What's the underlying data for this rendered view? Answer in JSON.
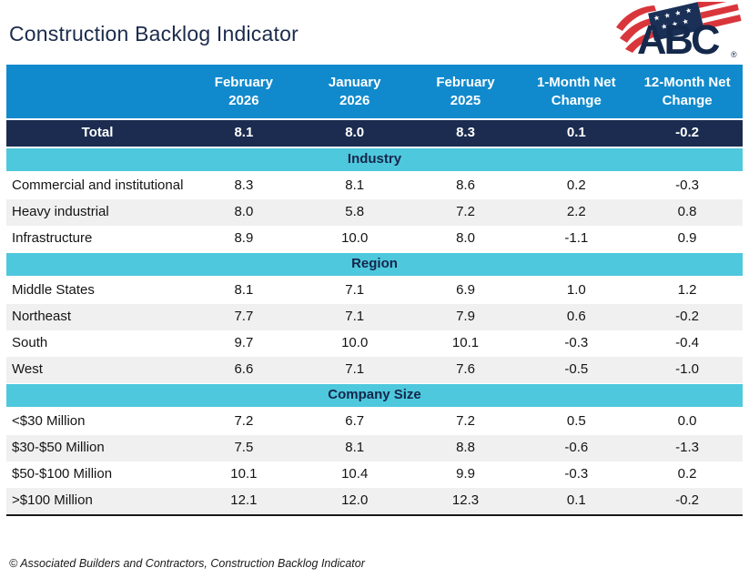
{
  "page": {
    "title": "Construction Backlog Indicator",
    "footer": "© Associated Builders and Contractors, Construction Backlog Indicator"
  },
  "logo": {
    "text": "ABC",
    "registered": "®"
  },
  "colors": {
    "header_blue": "#118acd",
    "total_navy": "#1b2c50",
    "section_cyan": "#4ec8dd",
    "row_alt_gray": "#f0f0f0",
    "logo_red": "#d9363c",
    "logo_navy": "#14294b"
  },
  "chart_data": {
    "type": "table",
    "title": "Construction Backlog Indicator",
    "columns": [
      "",
      "February\n2026",
      "January\n2026",
      "February\n2025",
      "1-Month Net\nChange",
      "12-Month Net\nChange"
    ],
    "total_row": {
      "label": "Total",
      "values": [
        "8.1",
        "8.0",
        "8.3",
        "0.1",
        "-0.2"
      ]
    },
    "sections": [
      {
        "title": "Industry",
        "rows": [
          {
            "label": "Commercial and institutional",
            "values": [
              "8.3",
              "8.1",
              "8.6",
              "0.2",
              "-0.3"
            ]
          },
          {
            "label": "Heavy industrial",
            "values": [
              "8.0",
              "5.8",
              "7.2",
              "2.2",
              "0.8"
            ]
          },
          {
            "label": "Infrastructure",
            "values": [
              "8.9",
              "10.0",
              "8.0",
              "-1.1",
              "0.9"
            ]
          }
        ]
      },
      {
        "title": "Region",
        "rows": [
          {
            "label": "Middle States",
            "values": [
              "8.1",
              "7.1",
              "6.9",
              "1.0",
              "1.2"
            ]
          },
          {
            "label": "Northeast",
            "values": [
              "7.7",
              "7.1",
              "7.9",
              "0.6",
              "-0.2"
            ]
          },
          {
            "label": "South",
            "values": [
              "9.7",
              "10.0",
              "10.1",
              "-0.3",
              "-0.4"
            ]
          },
          {
            "label": "West",
            "values": [
              "6.6",
              "7.1",
              "7.6",
              "-0.5",
              "-1.0"
            ]
          }
        ]
      },
      {
        "title": "Company Size",
        "rows": [
          {
            "label": "<$30 Million",
            "values": [
              "7.2",
              "6.7",
              "7.2",
              "0.5",
              "0.0"
            ]
          },
          {
            "label": "$30-$50 Million",
            "values": [
              "7.5",
              "8.1",
              "8.8",
              "-0.6",
              "-1.3"
            ]
          },
          {
            "label": "$50-$100 Million",
            "values": [
              "10.1",
              "10.4",
              "9.9",
              "-0.3",
              "0.2"
            ]
          },
          {
            "label": ">$100 Million",
            "values": [
              "12.1",
              "12.0",
              "12.3",
              "0.1",
              "-0.2"
            ]
          }
        ]
      }
    ]
  }
}
